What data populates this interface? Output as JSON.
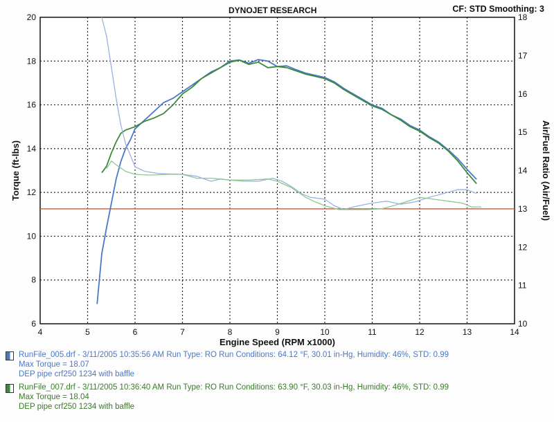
{
  "header": {
    "title": "DYNOJET RESEARCH",
    "info": "CF: STD  Smoothing: 3"
  },
  "chart_data": {
    "type": "line",
    "xlabel": "Engine Speed (RPM x1000)",
    "ylabel_left": "Torque (ft-lbs)",
    "ylabel_right": "Air/Fuel Ratio (Air/Fuel)",
    "xlim": [
      4,
      14
    ],
    "ylim_left": [
      6,
      20
    ],
    "ylim_right": [
      10,
      18
    ],
    "x_ticks": [
      "4",
      "5",
      "6",
      "7",
      "8",
      "9",
      "10",
      "11",
      "12",
      "13",
      "14"
    ],
    "y_ticks_left": [
      "6",
      "8",
      "10",
      "12",
      "14",
      "16",
      "18",
      "20"
    ],
    "y_ticks_right": [
      "10",
      "11",
      "12",
      "13",
      "14",
      "15",
      "16",
      "17",
      "18"
    ],
    "grid": true,
    "reference_afr": 13.0,
    "series": [
      {
        "name": "RunFile_005.drf",
        "axis": "left",
        "kind": "torque",
        "color": "#4a78c8",
        "x": [
          5.2,
          5.3,
          5.4,
          5.5,
          5.6,
          5.7,
          5.8,
          5.9,
          6.0,
          6.2,
          6.4,
          6.6,
          6.8,
          7.0,
          7.2,
          7.4,
          7.6,
          7.8,
          8.0,
          8.2,
          8.4,
          8.6,
          8.8,
          9.0,
          9.2,
          9.4,
          9.6,
          9.8,
          10.0,
          10.2,
          10.4,
          10.6,
          10.8,
          11.0,
          11.2,
          11.4,
          11.6,
          11.8,
          12.0,
          12.2,
          12.4,
          12.6,
          12.8,
          13.0,
          13.2
        ],
        "y": [
          6.9,
          9.2,
          10.4,
          11.5,
          12.6,
          13.4,
          14.0,
          14.4,
          14.9,
          15.3,
          15.7,
          16.1,
          16.3,
          16.6,
          16.9,
          17.2,
          17.5,
          17.7,
          18.0,
          18.05,
          17.9,
          18.07,
          18.0,
          17.75,
          17.78,
          17.6,
          17.45,
          17.35,
          17.25,
          17.05,
          16.75,
          16.5,
          16.25,
          16.0,
          15.85,
          15.55,
          15.35,
          15.05,
          14.85,
          14.55,
          14.3,
          13.95,
          13.55,
          13.05,
          12.6
        ]
      },
      {
        "name": "RunFile_007.drf",
        "axis": "left",
        "kind": "torque",
        "color": "#3a8a3a",
        "x": [
          5.3,
          5.4,
          5.5,
          5.6,
          5.7,
          5.8,
          6.0,
          6.2,
          6.4,
          6.6,
          6.8,
          7.0,
          7.2,
          7.4,
          7.6,
          7.8,
          8.0,
          8.2,
          8.4,
          8.6,
          8.8,
          9.0,
          9.2,
          9.4,
          9.6,
          9.8,
          10.0,
          10.2,
          10.4,
          10.6,
          10.8,
          11.0,
          11.2,
          11.4,
          11.6,
          11.8,
          12.0,
          12.2,
          12.4,
          12.6,
          12.8,
          13.0,
          13.2
        ],
        "y": [
          12.9,
          13.2,
          13.8,
          14.3,
          14.7,
          14.85,
          15.0,
          15.25,
          15.4,
          15.6,
          16.0,
          16.5,
          16.8,
          17.2,
          17.45,
          17.7,
          17.95,
          18.04,
          17.85,
          17.95,
          17.7,
          17.75,
          17.7,
          17.55,
          17.4,
          17.3,
          17.2,
          17.0,
          16.7,
          16.45,
          16.2,
          15.95,
          15.8,
          15.55,
          15.3,
          15.0,
          14.8,
          14.5,
          14.25,
          13.9,
          13.45,
          12.9,
          12.4
        ]
      },
      {
        "name": "RunFile_005.drf",
        "axis": "right",
        "kind": "afr",
        "color": "#9ab0e0",
        "x": [
          5.3,
          5.4,
          5.5,
          5.6,
          5.7,
          5.8,
          5.9,
          6.0,
          6.2,
          6.5,
          7.0,
          7.3,
          7.6,
          7.8,
          8.0,
          8.3,
          8.6,
          8.9,
          9.1,
          9.3,
          9.5,
          9.7,
          10.0,
          10.2,
          10.4,
          10.6,
          10.8,
          11.0,
          11.3,
          11.6,
          11.9,
          12.2,
          12.5,
          12.8,
          13.0,
          13.2
        ],
        "y": [
          18.0,
          17.5,
          16.7,
          15.9,
          15.2,
          14.7,
          14.4,
          14.1,
          13.98,
          13.92,
          13.9,
          13.85,
          13.72,
          13.78,
          13.75,
          13.72,
          13.72,
          13.8,
          13.72,
          13.58,
          13.4,
          13.3,
          13.25,
          13.08,
          12.98,
          13.05,
          13.1,
          13.15,
          13.2,
          13.12,
          13.18,
          13.3,
          13.4,
          13.5,
          13.5,
          13.4
        ]
      },
      {
        "name": "RunFile_007.drf",
        "axis": "right",
        "kind": "afr",
        "color": "#8cc890",
        "x": [
          5.4,
          5.5,
          5.6,
          5.8,
          6.0,
          6.3,
          6.7,
          7.0,
          7.3,
          7.6,
          8.0,
          8.4,
          8.8,
          9.0,
          9.3,
          9.6,
          9.8,
          10.0,
          10.3,
          10.6,
          10.9,
          11.2,
          11.5,
          11.8,
          12.0,
          12.3,
          12.6,
          12.9,
          13.1,
          13.3
        ],
        "y": [
          14.05,
          14.25,
          14.15,
          13.98,
          13.9,
          13.88,
          13.9,
          13.9,
          13.8,
          13.8,
          13.75,
          13.75,
          13.78,
          13.72,
          13.55,
          13.3,
          13.18,
          13.08,
          12.98,
          12.98,
          12.98,
          13.0,
          13.1,
          13.22,
          13.3,
          13.25,
          13.2,
          13.15,
          13.05,
          13.05
        ]
      }
    ]
  },
  "legend": [
    {
      "line1": "RunFile_005.drf - 3/11/2005 10:35:56 AM  Run Type: RO  Run Conditions: 64.12 °F, 30.01 in-Hg,  Humidity:  46%, STD: 0.99",
      "line2": "Max Torque = 18.07",
      "line3": "DEP pipe  crf250 1234 with baffle",
      "swatch": "#4a78c8"
    },
    {
      "line1": "RunFile_007.drf - 3/11/2005 10:36:40 AM  Run Type: RO  Run Conditions: 63.90 °F, 30.03 in-Hg,  Humidity:  46%, STD: 0.99",
      "line2": "Max Torque = 18.04",
      "line3": "DEP pipe  crf250 1234 with baffle",
      "swatch": "#3a8a3a"
    }
  ]
}
